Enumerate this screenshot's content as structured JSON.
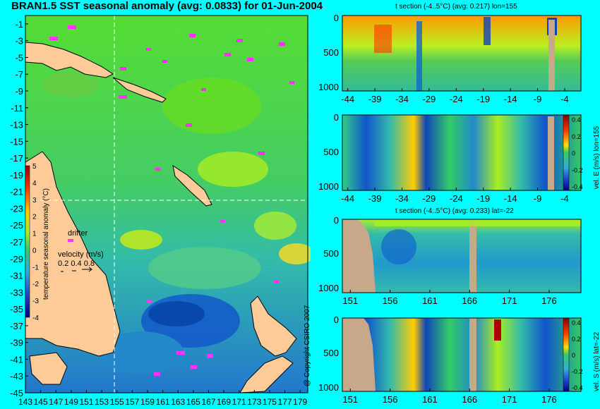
{
  "title": "BRAN1.5 SST seasonal anomaly (avg: 0.0833) for 01-Jun-2004",
  "copyright": "@ Copyright CSIRO 2007",
  "colors": {
    "background": "#00ffff",
    "land": "#ffcc99",
    "land_section": "#c8a88a",
    "drifter": "#ff33ff"
  },
  "map": {
    "lat_ticks": [
      "-1",
      "-3",
      "-5",
      "-7",
      "-9",
      "-11",
      "-13",
      "-15",
      "-17",
      "-19",
      "-21",
      "-23",
      "-25",
      "-27",
      "-29",
      "-31",
      "-33",
      "-35",
      "-37",
      "-39",
      "-41",
      "-43",
      "-45"
    ],
    "lon_ticks": [
      "143",
      "145",
      "147",
      "149",
      "151",
      "153",
      "155",
      "157",
      "159",
      "161",
      "163",
      "165",
      "167",
      "169",
      "171",
      "173",
      "175",
      "177",
      "179"
    ],
    "colorbar": {
      "label": "temperature seasonal anomaly (°C)",
      "ticks": [
        "5",
        "4",
        "3",
        "2",
        "1",
        "0",
        "-1",
        "-2",
        "-3",
        "-4"
      ]
    },
    "legend": {
      "drifter_label": "drifter",
      "velocity_label": "velocity (m/s)",
      "velocity_scale": "0.2 0.4 0.8"
    }
  },
  "sections": [
    {
      "title": "t section (-4..5°C) (avg: 0.217) lon=155",
      "y_ticks": [
        "0",
        "500",
        "1000"
      ],
      "x_ticks": [
        "-44",
        "-39",
        "-34",
        "-29",
        "-24",
        "-19",
        "-14",
        "-9",
        "-4"
      ],
      "colorbar": null
    },
    {
      "title": "",
      "y_ticks": [
        "0",
        "500",
        "1000"
      ],
      "x_ticks": [
        "-44",
        "-39",
        "-34",
        "-29",
        "-24",
        "-19",
        "-14",
        "-9",
        "-4"
      ],
      "colorbar": {
        "label": "vel. E (m/s) lon=155",
        "ticks": [
          "0.4",
          "0.2",
          "0",
          "-0.2",
          "-0.4"
        ]
      }
    },
    {
      "title": "t section (-4..5°C) (avg: 0.233) lat=-22",
      "y_ticks": [
        "0",
        "500",
        "1000"
      ],
      "x_ticks": [
        "151",
        "156",
        "161",
        "166",
        "171",
        "176"
      ],
      "colorbar": null
    },
    {
      "title": "",
      "y_ticks": [
        "0",
        "500",
        "1000"
      ],
      "x_ticks": [
        "151",
        "156",
        "161",
        "166",
        "171",
        "176"
      ],
      "colorbar": {
        "label": "vel. S (m/s) lat=-22",
        "ticks": [
          "0.4",
          "0.2",
          "0",
          "-0.2",
          "-0.4"
        ]
      }
    }
  ],
  "chart_data": [
    {
      "type": "heatmap",
      "title": "BRAN1.5 SST seasonal anomaly (avg: 0.0833) for 01-Jun-2004",
      "xlabel": "",
      "ylabel": "",
      "x_ticks": [
        143,
        145,
        147,
        149,
        151,
        153,
        155,
        157,
        159,
        161,
        163,
        165,
        167,
        169,
        171,
        173,
        175,
        177,
        179
      ],
      "y_ticks": [
        -1,
        -3,
        -5,
        -7,
        -9,
        -11,
        -13,
        -15,
        -17,
        -19,
        -21,
        -23,
        -25,
        -27,
        -29,
        -31,
        -33,
        -35,
        -37,
        -39,
        -41,
        -43,
        -45
      ],
      "xlim": [
        143,
        180
      ],
      "ylim": [
        -45,
        0
      ],
      "colorbar_range": [
        -4,
        5
      ],
      "colorbar_label": "temperature seasonal anomaly (°C)"
    },
    {
      "type": "heatmap",
      "title": "t section (-4..5°C) (avg: 0.217) lon=155",
      "x_ticks": [
        -44,
        -39,
        -34,
        -29,
        -24,
        -19,
        -14,
        -9,
        -4
      ],
      "y_ticks": [
        0,
        500,
        1000
      ],
      "xlim": [
        -45,
        -1
      ],
      "ylim": [
        0,
        1050
      ],
      "colorbar_range": [
        -4,
        5
      ]
    },
    {
      "type": "heatmap",
      "title": "",
      "x_ticks": [
        -44,
        -39,
        -34,
        -29,
        -24,
        -19,
        -14,
        -9,
        -4
      ],
      "y_ticks": [
        0,
        500,
        1000
      ],
      "xlim": [
        -45,
        -1
      ],
      "ylim": [
        0,
        1050
      ],
      "colorbar_range": [
        -0.4,
        0.4
      ],
      "colorbar_label": "vel. E (m/s) lon=155"
    },
    {
      "type": "heatmap",
      "title": "t section (-4..5°C) (avg: 0.233) lat=-22",
      "x_ticks": [
        151,
        156,
        161,
        166,
        171,
        176
      ],
      "y_ticks": [
        0,
        500,
        1000
      ],
      "xlim": [
        150,
        180
      ],
      "ylim": [
        0,
        1050
      ],
      "colorbar_range": [
        -4,
        5
      ]
    },
    {
      "type": "heatmap",
      "title": "",
      "x_ticks": [
        151,
        156,
        161,
        166,
        171,
        176
      ],
      "y_ticks": [
        0,
        500,
        1000
      ],
      "xlim": [
        150,
        180
      ],
      "ylim": [
        0,
        1050
      ],
      "colorbar_range": [
        -0.4,
        0.4
      ],
      "colorbar_label": "vel. S (m/s) lat=-22"
    }
  ]
}
